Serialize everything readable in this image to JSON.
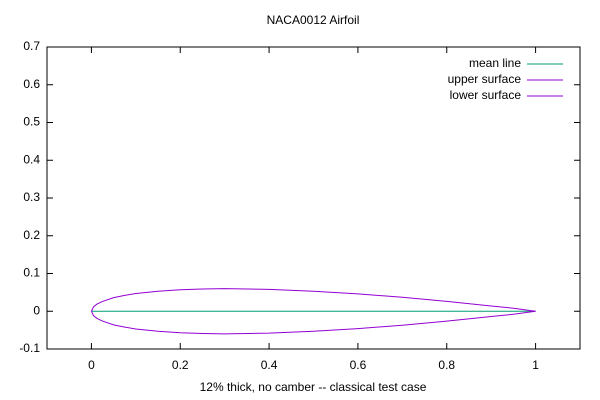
{
  "chart_data": {
    "type": "line",
    "title": "NACA0012 Airfoil",
    "x_label": "12% thick, no camber -- classical test case",
    "x": [
      0,
      0.005,
      0.0125,
      0.025,
      0.05,
      0.075,
      0.1,
      0.15,
      0.2,
      0.25,
      0.3,
      0.4,
      0.5,
      0.6,
      0.7,
      0.8,
      0.9,
      0.95,
      1
    ],
    "series": [
      {
        "name": "mean line",
        "color": "#009e73",
        "values": [
          0,
          0,
          0,
          0,
          0,
          0,
          0,
          0,
          0,
          0,
          0,
          0,
          0,
          0,
          0,
          0,
          0,
          0,
          0
        ]
      },
      {
        "name": "upper surface",
        "color": "#9400d3",
        "values": [
          0,
          0.012,
          0.019,
          0.026,
          0.036,
          0.042,
          0.047,
          0.053,
          0.057,
          0.059,
          0.06,
          0.058,
          0.053,
          0.046,
          0.037,
          0.026,
          0.014,
          0.008,
          0
        ]
      },
      {
        "name": "lower surface",
        "color": "#9400d3",
        "values": [
          0,
          -0.012,
          -0.019,
          -0.026,
          -0.036,
          -0.042,
          -0.047,
          -0.053,
          -0.057,
          -0.059,
          -0.06,
          -0.058,
          -0.053,
          -0.046,
          -0.037,
          -0.026,
          -0.014,
          -0.008,
          0
        ]
      }
    ],
    "xlim": [
      -0.1,
      1.1
    ],
    "xticks": [
      0,
      0.2,
      0.4,
      0.6,
      0.8,
      1
    ],
    "ylim": [
      -0.1,
      0.7
    ],
    "yticks": [
      -0.1,
      0,
      0.1,
      0.2,
      0.3,
      0.4,
      0.5,
      0.6,
      0.7
    ],
    "grid": false,
    "legend": "top-right"
  }
}
